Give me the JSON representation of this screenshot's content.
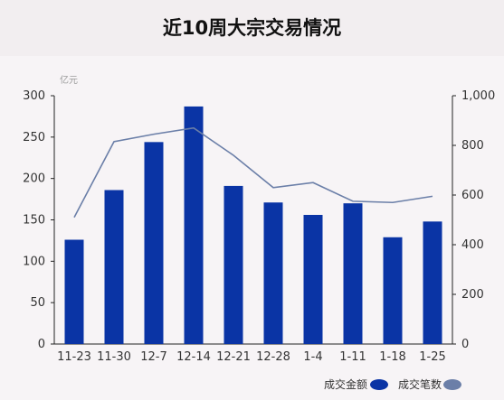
{
  "title": "近10周大宗交易情况",
  "chart_data": {
    "type": "bar",
    "categories": [
      "11-23",
      "11-30",
      "12-7",
      "12-14",
      "12-21",
      "12-28",
      "1-4",
      "1-11",
      "1-18",
      "1-25"
    ],
    "series": [
      {
        "name": "成交金额",
        "type": "bar",
        "axis": "left",
        "values": [
          126,
          186,
          244,
          287,
          191,
          171,
          156,
          170,
          129,
          148
        ]
      },
      {
        "name": "成交笔数",
        "type": "line",
        "axis": "right",
        "values": [
          510,
          815,
          845,
          870,
          760,
          630,
          650,
          575,
          570,
          595
        ]
      }
    ],
    "ylim": [
      0,
      300
    ],
    "y_ticks": [
      "0",
      "50",
      "100",
      "150",
      "200",
      "250",
      "300"
    ],
    "y2lim": [
      0,
      1000
    ],
    "y2_ticks": [
      "0",
      "200",
      "400",
      "600",
      "800",
      "1,000"
    ],
    "unit_label": "亿元",
    "legend_position": "bottom-right",
    "grid": false,
    "colors": {
      "bar": "#0a34a5",
      "line": "#6b7fa8",
      "legend_bar": "#0a34a5",
      "legend_line": "#6b7fa8"
    }
  }
}
